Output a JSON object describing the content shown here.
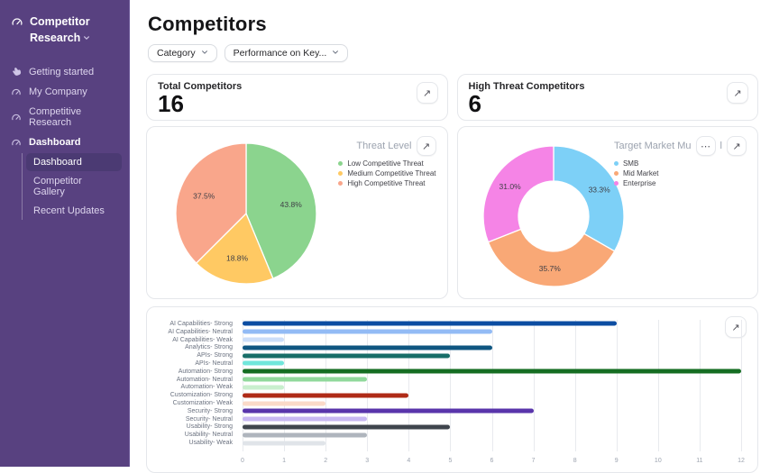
{
  "sidebar": {
    "workspace": {
      "title": "Competitor Research"
    },
    "items": [
      {
        "label": "Getting started",
        "icon": "hand-icon"
      },
      {
        "label": "My Company",
        "icon": "gauge-icon"
      },
      {
        "label": "Competitive Research",
        "icon": "gauge-icon"
      },
      {
        "label": "Dashboard",
        "icon": "gauge-icon"
      }
    ],
    "sub_items": [
      {
        "label": "Dashboard",
        "active": true
      },
      {
        "label": "Competitor Gallery",
        "active": false
      },
      {
        "label": "Recent Updates",
        "active": false
      }
    ]
  },
  "header": {
    "title": "Competitors",
    "filters": [
      {
        "label": "Category"
      },
      {
        "label": "Performance on Key..."
      }
    ]
  },
  "stat_cards": [
    {
      "label": "Total Competitors",
      "value": "16"
    },
    {
      "label": "High Threat Competitors",
      "value": "6"
    }
  ],
  "icons": {
    "expand": "↗",
    "more": "⋯"
  },
  "colors": {
    "sidebar_bg": "#584180",
    "sidebar_active": "#4b3a73",
    "card_border": "#e5e7eb"
  },
  "chart_data": [
    {
      "id": "threat-level",
      "type": "pie",
      "title": "Threat Level",
      "labels": [
        "Low Competitive Threat",
        "Medium Competitive Threat",
        "High Competitive Threat"
      ],
      "values": [
        43.8,
        18.8,
        37.5
      ],
      "value_suffix": "%",
      "colors": [
        "#8BD48E",
        "#FFC963",
        "#F9A68B"
      ],
      "legend_position": "top-right"
    },
    {
      "id": "target-market",
      "type": "donut",
      "title": "Target Market Mu",
      "title_tail": "l",
      "labels": [
        "SMB",
        "Mid Market",
        "Enterprise"
      ],
      "values": [
        33.3,
        35.7,
        31.0
      ],
      "value_suffix": "%",
      "inner_radius_ratio": 0.5,
      "colors": [
        "#7DD0F7",
        "#F9A876",
        "#F584E6"
      ],
      "legend_position": "top-right"
    },
    {
      "id": "performance-on-key-features",
      "type": "bar",
      "orientation": "horizontal",
      "categories": [
        "AI Capabilities- Strong",
        "AI Capabilities- Neutral",
        "AI Capabilities- Weak",
        "Analytics- Strong",
        "APIs- Strong",
        "APIs- Neutral",
        "Automation- Strong",
        "Automation- Neutral",
        "Automation- Weak",
        "Customization- Strong",
        "Customization- Weak",
        "Security- Strong",
        "Security- Neutral",
        "Usability- Strong",
        "Usability- Neutral",
        "Usability- Weak"
      ],
      "values": [
        9,
        6,
        1,
        6,
        5,
        1,
        12,
        3,
        1,
        4,
        2,
        7,
        3,
        5,
        3,
        2
      ],
      "colors": [
        "#0C4DA2",
        "#93BBF5",
        "#CCDEF9",
        "#0F5681",
        "#186E68",
        "#70E6DB",
        "#156D22",
        "#90D89B",
        "#C9EFCE",
        "#AF2B17",
        "#FBDAC8",
        "#5935AB",
        "#C8B8F2",
        "#3F454D",
        "#AFB5BD",
        "#E0E4E9"
      ],
      "xlim": [
        0,
        12
      ],
      "x_ticks": [
        0,
        1,
        2,
        3,
        4,
        5,
        6,
        7,
        8,
        9,
        10,
        11,
        12
      ],
      "grid": true
    }
  ]
}
